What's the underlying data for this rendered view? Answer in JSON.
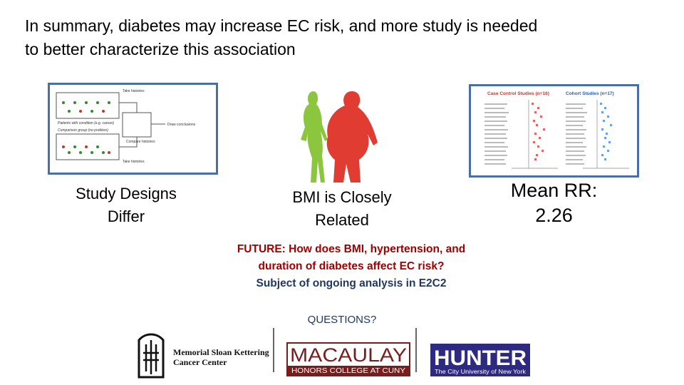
{
  "title": "In summary, diabetes may increase EC risk, and more study is needed to better characterize this association",
  "panels": [
    {
      "caption": "Study Designs Differ"
    },
    {
      "caption": "BMI is Closely Related"
    },
    {
      "caption": "Mean RR: 2.26"
    }
  ],
  "study_design_figure": {
    "patient_group": "Patients with condition (e.g. cancer)",
    "comparison_group": "Comparison group (no problem)",
    "labels": [
      "Take histories",
      "Draw conclusions",
      "Compare histories",
      "Take histories"
    ]
  },
  "forest_plot": {
    "left_title": "Case Control Studies (n=16)",
    "right_title": "Cohort Studies (n=17)"
  },
  "future": {
    "question": "FUTURE: How does BMI, hypertension, and duration of diabetes affect EC risk?",
    "note": "Subject of ongoing analysis in E2C2"
  },
  "questions": "QUESTIONS?",
  "logos": {
    "msk": "Memorial Sloan Kettering Cancer Center",
    "macaulay": "MACAULAY",
    "macaulay_sub": "HONORS COLLEGE AT CUNY",
    "hunter": "HUNTER",
    "hunter_sub": "The City University of New York"
  }
}
